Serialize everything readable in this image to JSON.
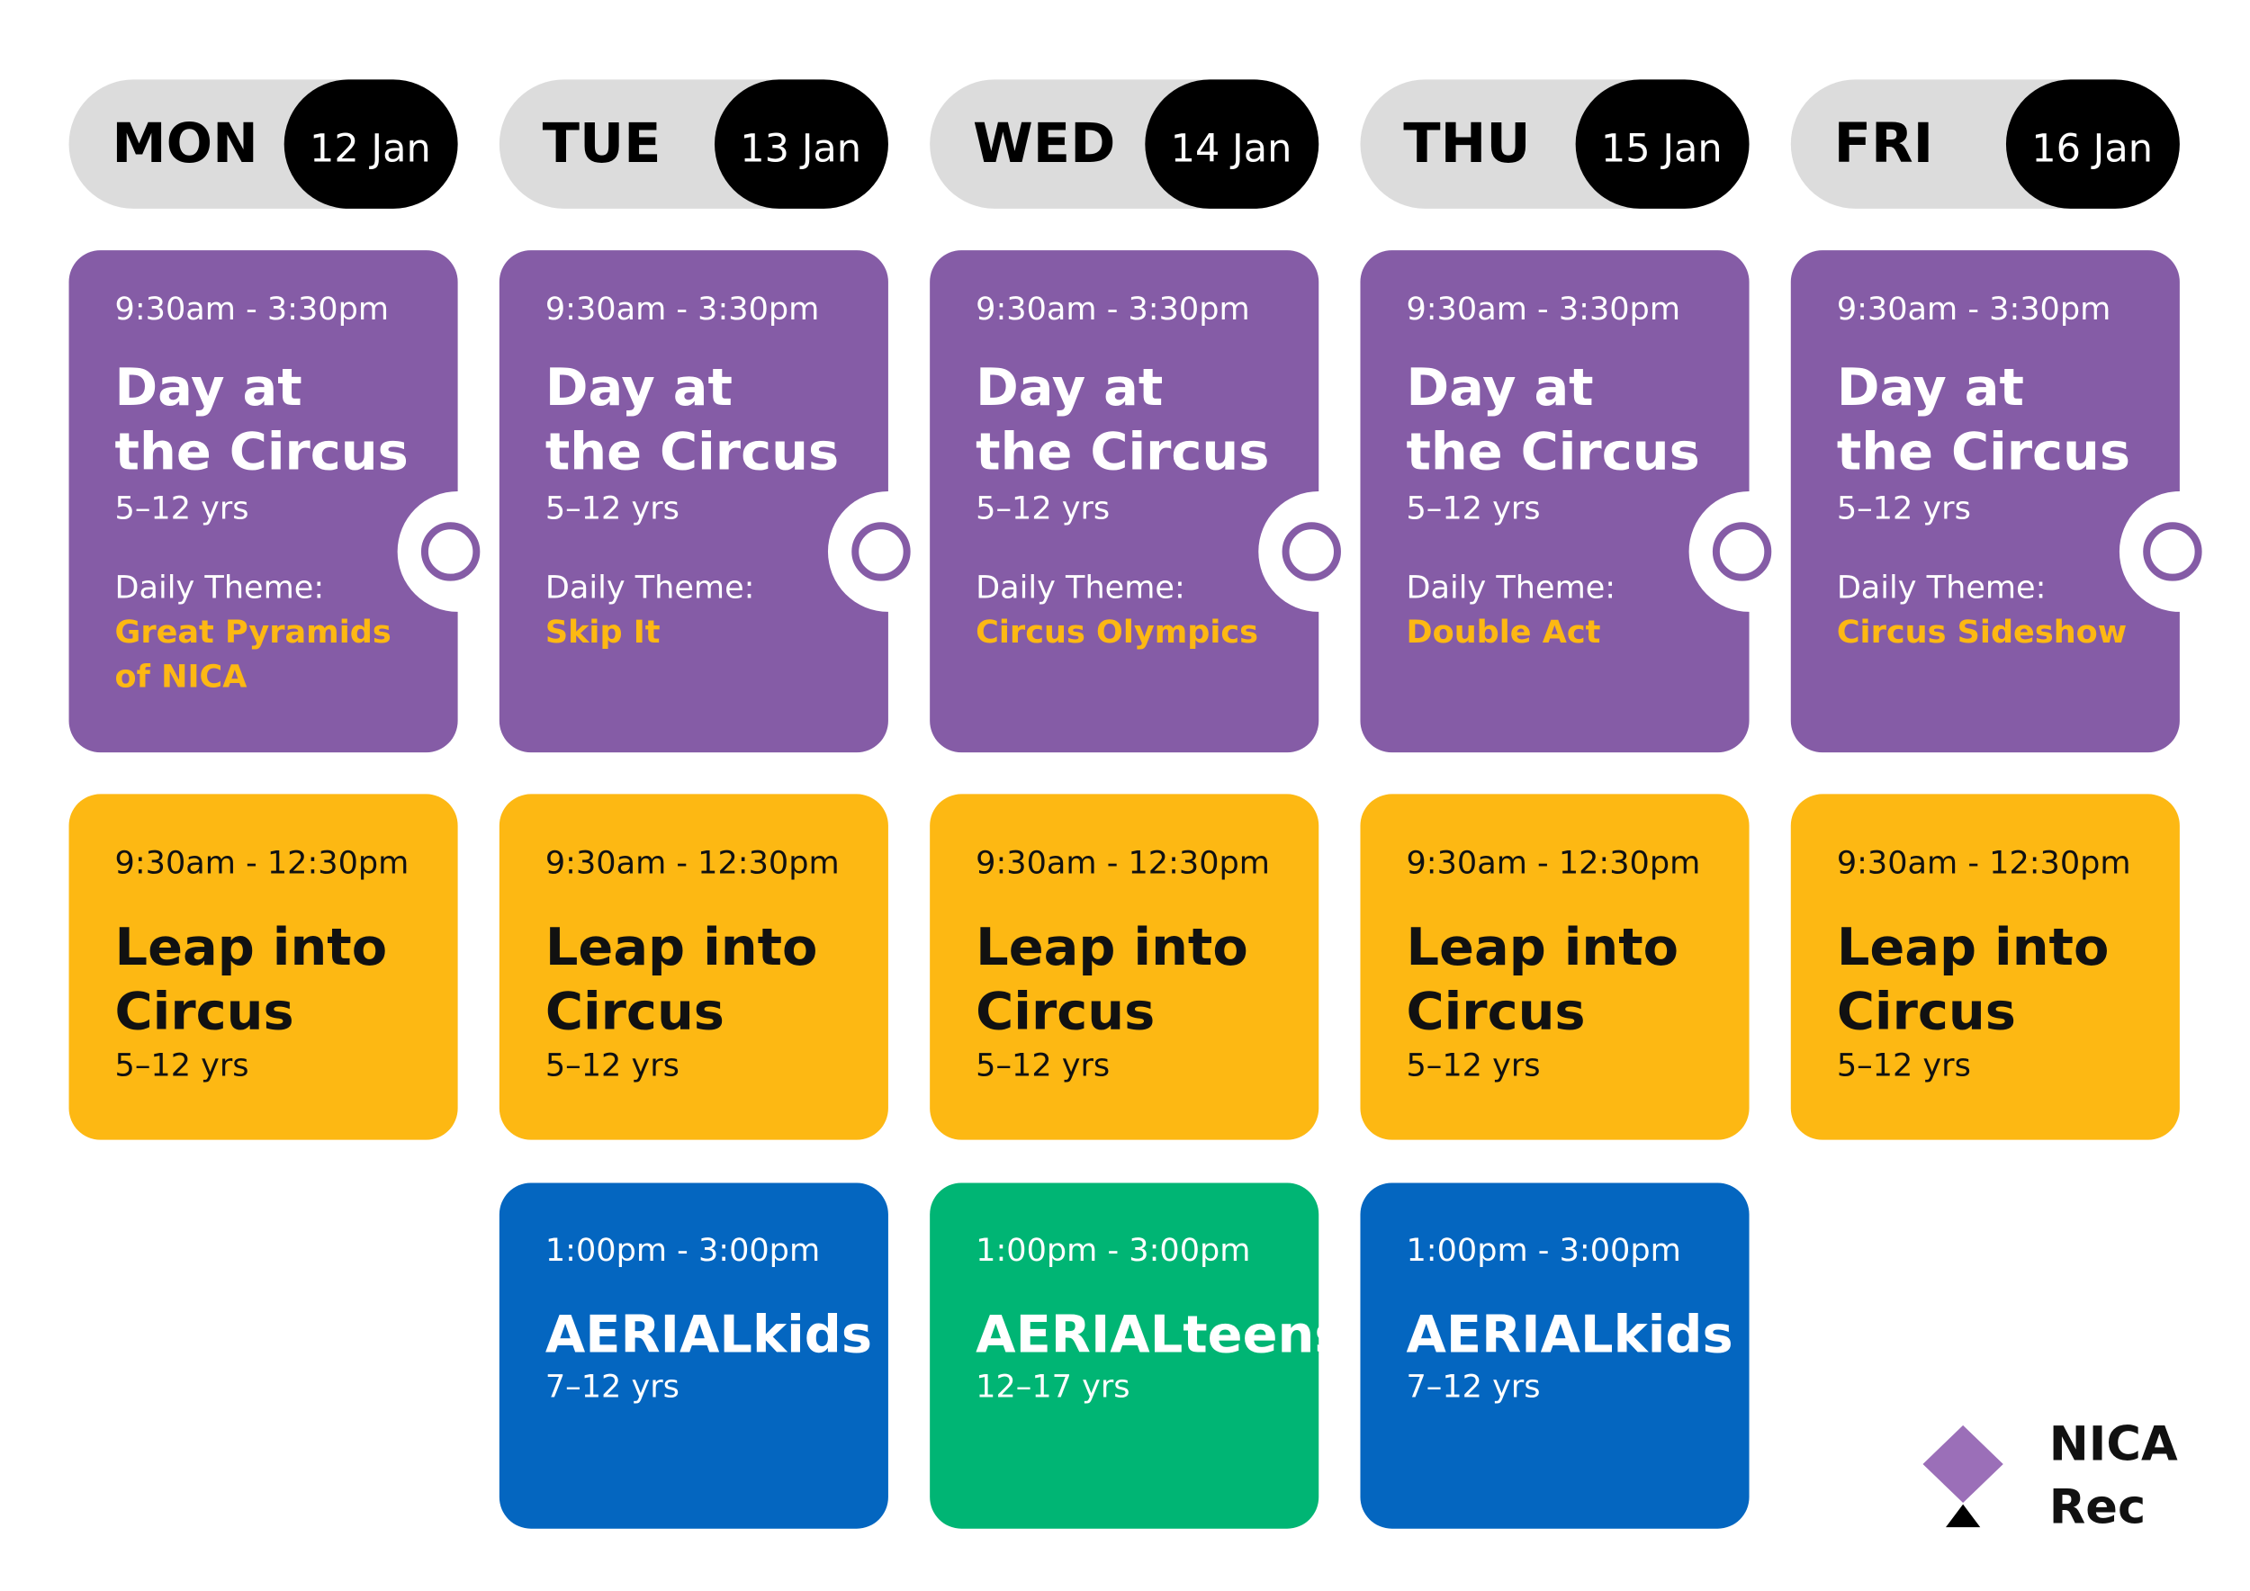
{
  "days": [
    {
      "day": "MON",
      "date": "12 Jan",
      "sessions": [
        {
          "color": "#855ca6",
          "time": "9:30am - 3:30pm",
          "title": [
            "Day at",
            "the Circus"
          ],
          "ages": "5–12 yrs",
          "theme_label": "Daily Theme:",
          "theme": [
            "Great Pyramids",
            "of NICA"
          ]
        },
        {
          "color": "#fdb813",
          "time": "9:30am - 12:30pm",
          "title": [
            "Leap into",
            "Circus"
          ],
          "ages": "5–12 yrs"
        }
      ]
    },
    {
      "day": "TUE",
      "date": "13 Jan",
      "sessions": [
        {
          "color": "#855ca6",
          "time": "9:30am - 3:30pm",
          "title": [
            "Day at",
            "the Circus"
          ],
          "ages": "5–12 yrs",
          "theme_label": "Daily Theme:",
          "theme": [
            "Skip It"
          ]
        },
        {
          "color": "#fdb813",
          "time": "9:30am - 12:30pm",
          "title": [
            "Leap into",
            "Circus"
          ],
          "ages": "5–12 yrs"
        },
        {
          "color": "#0466c0",
          "time": "1:00pm - 3:00pm",
          "title": [
            "AERIALkids"
          ],
          "ages": "7–12 yrs"
        }
      ]
    },
    {
      "day": "WED",
      "date": "14 Jan",
      "sessions": [
        {
          "color": "#855ca6",
          "time": "9:30am - 3:30pm",
          "title": [
            "Day at",
            "the Circus"
          ],
          "ages": "5–12 yrs",
          "theme_label": "Daily Theme:",
          "theme": [
            "Circus Olympics"
          ]
        },
        {
          "color": "#fdb813",
          "time": "9:30am - 12:30pm",
          "title": [
            "Leap into",
            "Circus"
          ],
          "ages": "5–12 yrs"
        },
        {
          "color": "#00b574",
          "time": "1:00pm - 3:00pm",
          "title": [
            "AERIALteens"
          ],
          "ages": "12–17 yrs"
        }
      ]
    },
    {
      "day": "THU",
      "date": "15 Jan",
      "sessions": [
        {
          "color": "#855ca6",
          "time": "9:30am - 3:30pm",
          "title": [
            "Day at",
            "the Circus"
          ],
          "ages": "5–12 yrs",
          "theme_label": "Daily Theme:",
          "theme": [
            "Double Act"
          ]
        },
        {
          "color": "#fdb813",
          "time": "9:30am - 12:30pm",
          "title": [
            "Leap into",
            "Circus"
          ],
          "ages": "5–12 yrs"
        },
        {
          "color": "#0466c0",
          "time": "1:00pm - 3:00pm",
          "title": [
            "AERIALkids"
          ],
          "ages": "7–12 yrs"
        }
      ]
    },
    {
      "day": "FRI",
      "date": "16 Jan",
      "sessions": [
        {
          "color": "#855ca6",
          "time": "9:30am - 3:30pm",
          "title": [
            "Day at",
            "the Circus"
          ],
          "ages": "5–12 yrs",
          "theme_label": "Daily Theme:",
          "theme": [
            "Circus Sideshow"
          ]
        },
        {
          "color": "#fdb813",
          "time": "9:30am - 12:30pm",
          "title": [
            "Leap into",
            "Circus"
          ],
          "ages": "5–12 yrs"
        }
      ]
    }
  ],
  "logo": [
    "NICA",
    "Rec"
  ]
}
